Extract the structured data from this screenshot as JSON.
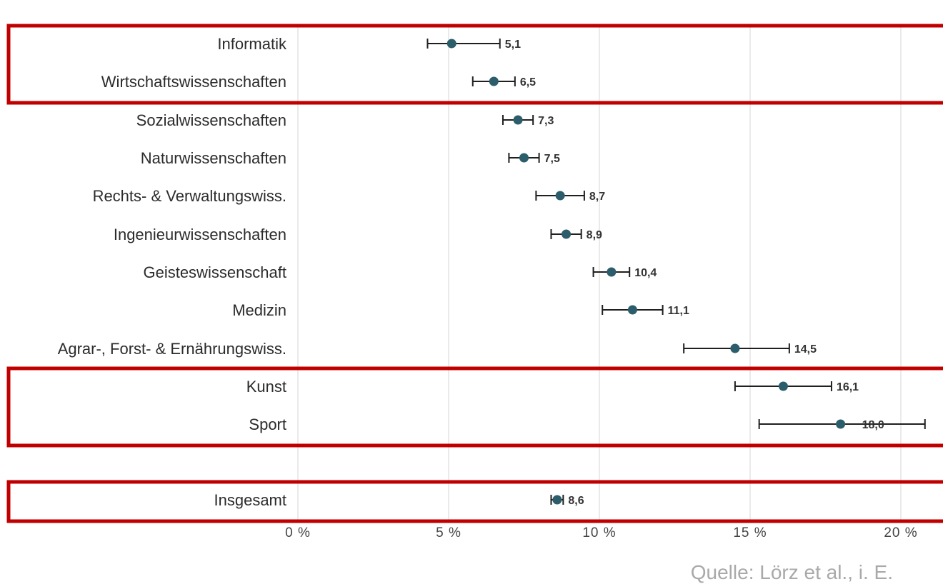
{
  "source_note": "Quelle: Lörz et al., i. E.",
  "colors": {
    "marker": "#2b5d6b",
    "errorbar": "#1f1f1f",
    "highlight": "#c00000",
    "grid": "#d4d4d4"
  },
  "chart_data": {
    "type": "scatter",
    "orientation": "horizontal",
    "title": "",
    "xlabel": "",
    "ylabel": "",
    "xlim": [
      0,
      20
    ],
    "x_ticks": [
      0,
      5,
      10,
      15,
      20
    ],
    "x_tick_labels": [
      "0 %",
      "5 %",
      "10 %",
      "15 %",
      "20 %"
    ],
    "grid": "vertical",
    "categories": [
      {
        "label": "Informatik",
        "value": 5.1,
        "value_label": "5,1",
        "ci": [
          4.3,
          6.7
        ]
      },
      {
        "label": "Wirtschaftswissenschaften",
        "value": 6.5,
        "value_label": "6,5",
        "ci": [
          5.8,
          7.2
        ]
      },
      {
        "label": "Sozialwissenschaften",
        "value": 7.3,
        "value_label": "7,3",
        "ci": [
          6.8,
          7.8
        ]
      },
      {
        "label": "Naturwissenschaften",
        "value": 7.5,
        "value_label": "7,5",
        "ci": [
          7.0,
          8.0
        ]
      },
      {
        "label": "Rechts- & Verwaltungswiss.",
        "value": 8.7,
        "value_label": "8,7",
        "ci": [
          7.9,
          9.5
        ]
      },
      {
        "label": "Ingenieurwissenschaften",
        "value": 8.9,
        "value_label": "8,9",
        "ci": [
          8.4,
          9.4
        ]
      },
      {
        "label": "Geisteswissenschaft",
        "value": 10.4,
        "value_label": "10,4",
        "ci": [
          9.8,
          11.0
        ]
      },
      {
        "label": "Medizin",
        "value": 11.1,
        "value_label": "11,1",
        "ci": [
          10.1,
          12.1
        ]
      },
      {
        "label": "Agrar-, Forst- & Ernährungswiss.",
        "value": 14.5,
        "value_label": "14,5",
        "ci": [
          12.8,
          16.3
        ]
      },
      {
        "label": "Kunst",
        "value": 16.1,
        "value_label": "16,1",
        "ci": [
          14.5,
          17.7
        ]
      },
      {
        "label": "Sport",
        "value": 18.0,
        "value_label": "18,0",
        "ci": [
          15.3,
          20.8
        ]
      },
      {
        "label": "Insgesamt",
        "value": 8.6,
        "value_label": "8,6",
        "ci": [
          8.4,
          8.8
        ]
      }
    ],
    "highlight_groups": [
      [
        "Informatik",
        "Wirtschaftswissenschaften"
      ],
      [
        "Kunst",
        "Sport"
      ],
      [
        "Insgesamt"
      ]
    ]
  }
}
